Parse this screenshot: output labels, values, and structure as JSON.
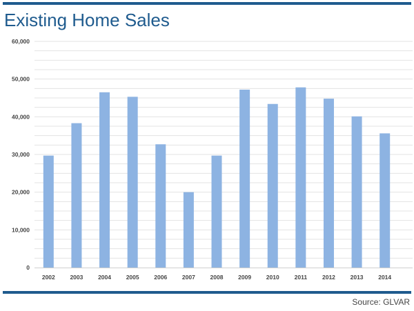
{
  "title": "Existing Home Sales",
  "source": "Source: GLVAR",
  "colors": {
    "bar": "#8db3e2",
    "rule": "#1f5b8e",
    "title": "#1f5b8e",
    "grid": "#e3e3e3"
  },
  "chart_data": {
    "type": "bar",
    "title": "Existing Home Sales",
    "xlabel": "",
    "ylabel": "",
    "categories": [
      "2002",
      "2003",
      "2004",
      "2005",
      "2006",
      "2007",
      "2008",
      "2009",
      "2010",
      "2011",
      "2012",
      "2013",
      "2014"
    ],
    "values": [
      29700,
      38300,
      46500,
      45300,
      32700,
      20000,
      29700,
      47200,
      43400,
      47800,
      44800,
      40100,
      35600
    ],
    "ylim": [
      0,
      60000
    ],
    "yticks": [
      0,
      10000,
      20000,
      30000,
      40000,
      50000,
      60000
    ],
    "ytick_labels": [
      "0",
      "10,000",
      "20,000",
      "30,000",
      "40,000",
      "50,000",
      "60,000"
    ],
    "grid": true,
    "legend": "none"
  }
}
